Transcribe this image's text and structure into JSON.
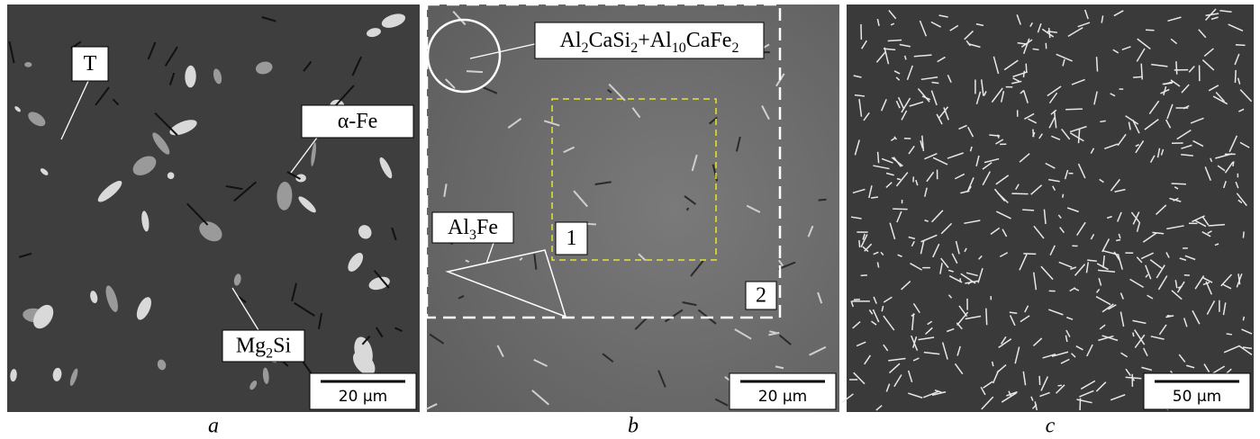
{
  "panels": [
    {
      "caption": "a",
      "scale_bar": "20 µm",
      "labels": [
        {
          "parts": [
            {
              "text": "T"
            }
          ]
        },
        {
          "parts": [
            {
              "text": "α-Fe"
            }
          ]
        },
        {
          "parts": [
            {
              "text": "Mg"
            },
            {
              "text": "2",
              "sub": true
            },
            {
              "text": "Si"
            }
          ]
        }
      ]
    },
    {
      "caption": "b",
      "scale_bar": "20 µm",
      "labels": [
        {
          "parts": [
            {
              "text": "Al"
            },
            {
              "text": "2",
              "sub": true
            },
            {
              "text": "CaSi"
            },
            {
              "text": "2",
              "sub": true
            },
            {
              "text": "+Al"
            },
            {
              "text": "10",
              "sub": true
            },
            {
              "text": "CaFe"
            },
            {
              "text": "2",
              "sub": true
            }
          ]
        },
        {
          "parts": [
            {
              "text": "Al"
            },
            {
              "text": "3",
              "sub": true
            },
            {
              "text": "Fe"
            }
          ]
        },
        {
          "parts": [
            {
              "text": "1"
            }
          ]
        },
        {
          "parts": [
            {
              "text": "2"
            }
          ]
        }
      ]
    },
    {
      "caption": "c",
      "scale_bar": "50 µm"
    }
  ]
}
